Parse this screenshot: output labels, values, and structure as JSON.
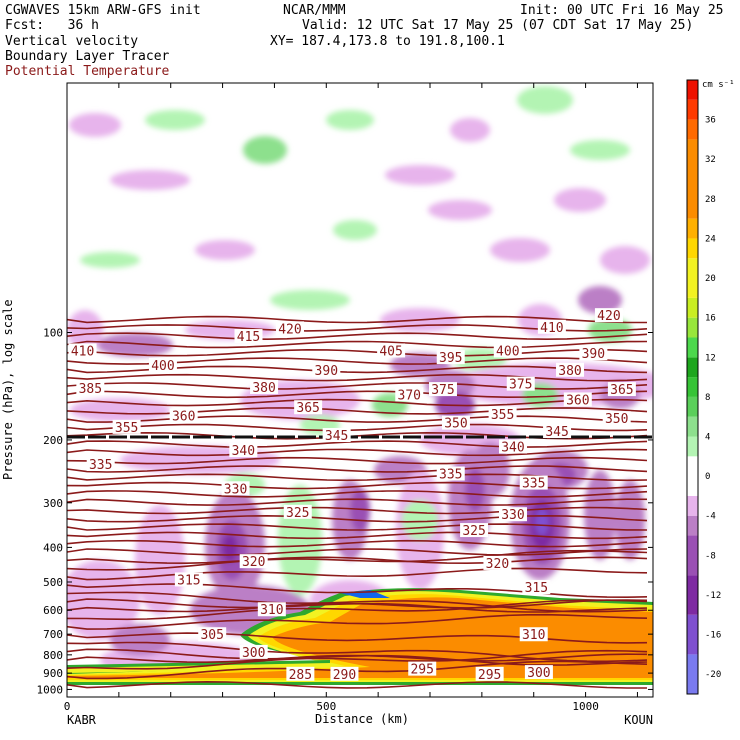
{
  "header": {
    "model": "CGWAVES 15km ARW-GFS init",
    "org": "NCAR/MMM",
    "init": "Init: 00 UTC Fri 16 May 25",
    "fcst": "Fcst:   36 h",
    "valid": "Valid: 12 UTC Sat 17 May 25 (07 CDT Sat 17 May 25)",
    "xy": "XY= 187.4,173.8 to 191.8,100.1",
    "field1": "Vertical velocity",
    "field2": "Boundary Layer Tracer",
    "field3": "Potential Temperature",
    "field3_color": "#8b1a1a"
  },
  "chart_data": {
    "type": "cross-section",
    "xlabel": "Distance (km)",
    "ylabel": "Pressure (hPa), log scale",
    "x_ticks": [
      "0",
      "500",
      "1000"
    ],
    "x_range": [
      0,
      1130
    ],
    "y_ticks": [
      "100",
      "200",
      "300",
      "400",
      "500",
      "600",
      "700",
      "800",
      "900",
      "1000"
    ],
    "y_tick_values": [
      100,
      200,
      300,
      400,
      500,
      600,
      700,
      800,
      900,
      1000
    ],
    "y_range": [
      20,
      1050
    ],
    "y_scale": "log",
    "start_label": "KABR",
    "end_label": "KOUN",
    "colorbar": {
      "unit": "cm s⁻¹",
      "tick_labels": [
        "36",
        "32",
        "28",
        "24",
        "20",
        "16",
        "12",
        "8",
        "4",
        "0",
        "-4",
        "-8",
        "-12",
        "-16",
        "-20"
      ],
      "tick_values": [
        36,
        32,
        28,
        24,
        20,
        16,
        12,
        8,
        4,
        0,
        -4,
        -8,
        -12,
        -16,
        -20
      ],
      "range": [
        -22,
        40
      ],
      "colors": [
        {
          "from": -22,
          "to": -18,
          "color": "#7a7aef"
        },
        {
          "from": -18,
          "to": -14,
          "color": "#7f50d0"
        },
        {
          "from": -14,
          "to": -10,
          "color": "#7e2aa2"
        },
        {
          "from": -10,
          "to": -6,
          "color": "#9a50b4"
        },
        {
          "from": -6,
          "to": -4,
          "color": "#bb7fc6"
        },
        {
          "from": -4,
          "to": -2,
          "color": "#e7b4ec"
        },
        {
          "from": -2,
          "to": 2,
          "color": "#ffffff"
        },
        {
          "from": 2,
          "to": 4,
          "color": "#b3f4b3"
        },
        {
          "from": 4,
          "to": 6,
          "color": "#8de08d"
        },
        {
          "from": 6,
          "to": 8,
          "color": "#5acf5a"
        },
        {
          "from": 8,
          "to": 10,
          "color": "#36c336"
        },
        {
          "from": 10,
          "to": 12,
          "color": "#1ea61e"
        },
        {
          "from": 12,
          "to": 14,
          "color": "#4cd84c"
        },
        {
          "from": 14,
          "to": 16,
          "color": "#98e63b"
        },
        {
          "from": 16,
          "to": 18,
          "color": "#c9ee22"
        },
        {
          "from": 18,
          "to": 22,
          "color": "#f2f222"
        },
        {
          "from": 22,
          "to": 24,
          "color": "#ffd700"
        },
        {
          "from": 24,
          "to": 26,
          "color": "#ffb000"
        },
        {
          "from": 26,
          "to": 34,
          "color": "#fb8c00"
        },
        {
          "from": 34,
          "to": 36,
          "color": "#ff6a00"
        },
        {
          "from": 36,
          "to": 38,
          "color": "#ff3a00"
        },
        {
          "from": 38,
          "to": 40,
          "color": "#ee1100"
        }
      ]
    },
    "theta_color": "#8b1a1a",
    "theta_labels": [
      {
        "text": "420",
        "x": 430,
        "p": 98
      },
      {
        "text": "420",
        "x": 1045,
        "p": 90
      },
      {
        "text": "415",
        "x": 350,
        "p": 103
      },
      {
        "text": "410",
        "x": 30,
        "p": 113
      },
      {
        "text": "410",
        "x": 935,
        "p": 97
      },
      {
        "text": "405",
        "x": 625,
        "p": 113
      },
      {
        "text": "400",
        "x": 185,
        "p": 124
      },
      {
        "text": "400",
        "x": 850,
        "p": 113
      },
      {
        "text": "395",
        "x": 740,
        "p": 118
      },
      {
        "text": "390",
        "x": 500,
        "p": 128
      },
      {
        "text": "390",
        "x": 1015,
        "p": 115
      },
      {
        "text": "385",
        "x": 45,
        "p": 144
      },
      {
        "text": "380",
        "x": 380,
        "p": 143
      },
      {
        "text": "380",
        "x": 970,
        "p": 128
      },
      {
        "text": "375",
        "x": 725,
        "p": 145
      },
      {
        "text": "375",
        "x": 875,
        "p": 140
      },
      {
        "text": "370",
        "x": 660,
        "p": 150
      },
      {
        "text": "365",
        "x": 465,
        "p": 163
      },
      {
        "text": "365",
        "x": 1070,
        "p": 145
      },
      {
        "text": "360",
        "x": 225,
        "p": 172
      },
      {
        "text": "360",
        "x": 985,
        "p": 155
      },
      {
        "text": "355",
        "x": 115,
        "p": 185
      },
      {
        "text": "355",
        "x": 840,
        "p": 170
      },
      {
        "text": "350",
        "x": 750,
        "p": 180
      },
      {
        "text": "350",
        "x": 1060,
        "p": 175
      },
      {
        "text": "345",
        "x": 520,
        "p": 195
      },
      {
        "text": "345",
        "x": 945,
        "p": 190
      },
      {
        "text": "340",
        "x": 340,
        "p": 215
      },
      {
        "text": "340",
        "x": 860,
        "p": 210
      },
      {
        "text": "335",
        "x": 65,
        "p": 235
      },
      {
        "text": "335",
        "x": 740,
        "p": 250
      },
      {
        "text": "335",
        "x": 900,
        "p": 265
      },
      {
        "text": "330",
        "x": 325,
        "p": 275
      },
      {
        "text": "330",
        "x": 860,
        "p": 325
      },
      {
        "text": "325",
        "x": 445,
        "p": 320
      },
      {
        "text": "325",
        "x": 785,
        "p": 360
      },
      {
        "text": "320",
        "x": 360,
        "p": 440
      },
      {
        "text": "320",
        "x": 830,
        "p": 445
      },
      {
        "text": "315",
        "x": 235,
        "p": 495
      },
      {
        "text": "315",
        "x": 905,
        "p": 520
      },
      {
        "text": "310",
        "x": 395,
        "p": 600
      },
      {
        "text": "310",
        "x": 900,
        "p": 705
      },
      {
        "text": "305",
        "x": 280,
        "p": 705
      },
      {
        "text": "300",
        "x": 360,
        "p": 790
      },
      {
        "text": "300",
        "x": 910,
        "p": 900
      },
      {
        "text": "295",
        "x": 685,
        "p": 880
      },
      {
        "text": "295",
        "x": 815,
        "p": 910
      },
      {
        "text": "290",
        "x": 535,
        "p": 910
      },
      {
        "text": "285",
        "x": 450,
        "p": 910
      }
    ]
  }
}
